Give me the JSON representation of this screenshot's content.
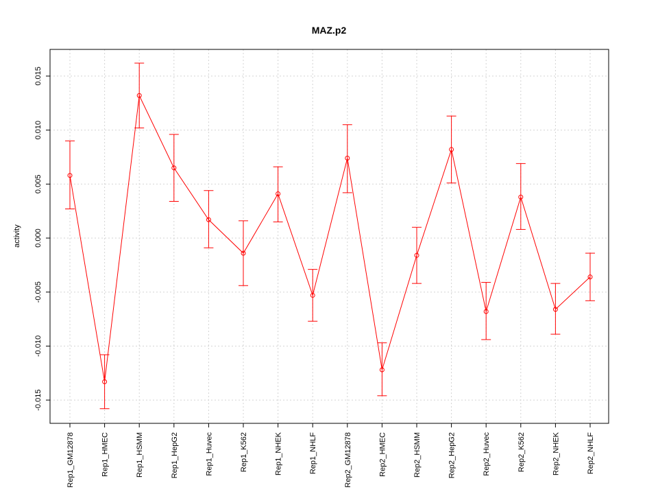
{
  "chart_data": {
    "type": "line",
    "title": "MAZ.p2",
    "xlabel": "",
    "ylabel": "activity",
    "grid": true,
    "ylim": [
      -0.017,
      0.0175
    ],
    "yticks": [
      {
        "value": -0.015,
        "label": "-0.015"
      },
      {
        "value": -0.01,
        "label": "-0.010"
      },
      {
        "value": -0.005,
        "label": "-0.005"
      },
      {
        "value": 0.0,
        "label": "0.000"
      },
      {
        "value": 0.005,
        "label": "0.005"
      },
      {
        "value": 0.01,
        "label": "0.010"
      },
      {
        "value": 0.015,
        "label": "0.015"
      }
    ],
    "categories": [
      "Rep1_GM12878",
      "Rep1_HMEC",
      "Rep1_HSMM",
      "Rep1_HepG2",
      "Rep1_Huvec",
      "Rep1_K562",
      "Rep1_NHEK",
      "Rep1_NHLF",
      "Rep2_GM12878",
      "Rep2_HMEC",
      "Rep2_HSMM",
      "Rep2_HepG2",
      "Rep2_Huvec",
      "Rep2_K562",
      "Rep2_NHEK",
      "Rep2_NHLF"
    ],
    "series": [
      {
        "color": "#ff0000",
        "values": [
          0.0058,
          -0.0133,
          0.0132,
          0.0065,
          0.0017,
          -0.0014,
          0.0041,
          -0.0053,
          0.0074,
          -0.0122,
          -0.0016,
          0.0082,
          -0.0068,
          0.0038,
          -0.0066,
          -0.0036
        ],
        "upper": [
          0.009,
          -0.0108,
          0.0162,
          0.0096,
          0.0044,
          0.0016,
          0.0066,
          -0.0029,
          0.0105,
          -0.0097,
          0.001,
          0.0113,
          -0.0041,
          0.0069,
          -0.0042,
          -0.0014
        ],
        "lower": [
          0.0027,
          -0.0158,
          0.0102,
          0.0034,
          -0.0009,
          -0.0044,
          0.0015,
          -0.0077,
          0.0042,
          -0.0146,
          -0.0042,
          0.0051,
          -0.0094,
          0.0008,
          -0.0089,
          -0.0058
        ]
      }
    ]
  }
}
